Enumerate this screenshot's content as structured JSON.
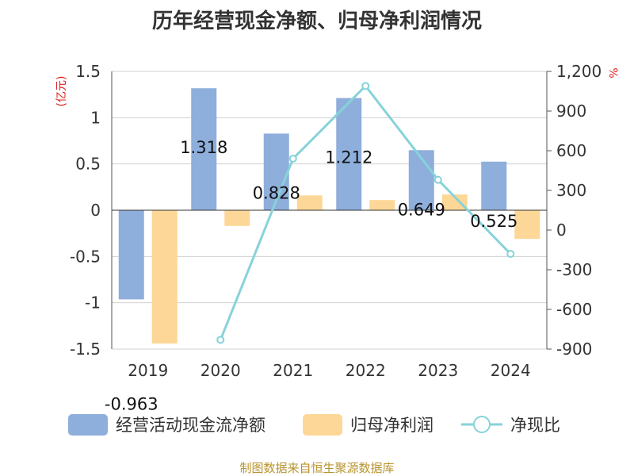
{
  "chart_data": {
    "type": "bar",
    "title": "历年经营现金净额、归母净利润情况",
    "categories": [
      "2019",
      "2020",
      "2021",
      "2022",
      "2023",
      "2024"
    ],
    "series": [
      {
        "name": "经营活动现金流净额",
        "kind": "bar",
        "axis": "left",
        "color": "#8eaedb",
        "values": [
          -0.963,
          1.318,
          0.828,
          1.212,
          0.649,
          0.525
        ],
        "labels": [
          "-0.963",
          "1.318",
          "0.828",
          "1.212",
          "0.649",
          "0.525"
        ]
      },
      {
        "name": "归母净利润",
        "kind": "bar",
        "axis": "left",
        "color": "#fdd797",
        "values": [
          -1.44,
          -0.17,
          0.16,
          0.11,
          0.17,
          -0.31
        ]
      },
      {
        "name": "净现比",
        "kind": "line",
        "axis": "right",
        "color": "#86d3d9",
        "values": [
          null,
          -830,
          540,
          1090,
          380,
          -180
        ]
      }
    ],
    "y_left": {
      "label": "(亿元)",
      "min": -1.5,
      "max": 1.5,
      "ticks": [
        "1.5",
        "1",
        "0.5",
        "0",
        "-0.5",
        "-1",
        "-1.5"
      ],
      "tick_values": [
        1.5,
        1,
        0.5,
        0,
        -0.5,
        -1,
        -1.5
      ]
    },
    "y_right": {
      "label": "%",
      "min": -900,
      "max": 1200,
      "ticks": [
        "1,200",
        "900",
        "600",
        "300",
        "0",
        "-300",
        "-600",
        "-900"
      ],
      "tick_values": [
        1200,
        900,
        600,
        300,
        0,
        -300,
        -600,
        -900
      ]
    },
    "grid": true,
    "legend_position": "bottom",
    "source": "制图数据来自恒生聚源数据库"
  }
}
